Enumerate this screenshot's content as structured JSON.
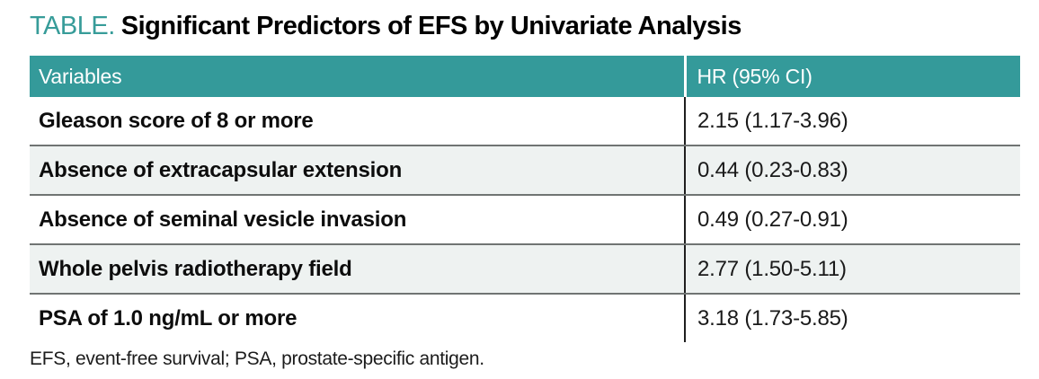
{
  "title": {
    "label": "TABLE.",
    "text": "Significant Predictors of EFS by Univariate Analysis"
  },
  "table": {
    "columns": [
      "Variables",
      "HR (95% CI)"
    ],
    "rows": [
      {
        "variable": "Gleason score of 8 or more",
        "hr": "2.15 (1.17-3.96)"
      },
      {
        "variable": "Absence of extracapsular extension",
        "hr": "0.44 (0.23-0.83)"
      },
      {
        "variable": "Absence of seminal vesicle invasion",
        "hr": "0.49 (0.27-0.91)"
      },
      {
        "variable": "Whole pelvis radiotherapy field",
        "hr": "2.77 (1.50-5.11)"
      },
      {
        "variable": "PSA of 1.0 ng/mL or more",
        "hr": "3.18 (1.73-5.85)"
      }
    ]
  },
  "footnote": "EFS, event-free survival; PSA, prostate-specific antigen.",
  "colors": {
    "accent_teal": "#349a9a",
    "header_text": "#ffffff",
    "row_alt_background": "#eef2f1",
    "row_separator": "#707473",
    "column_divider": "#1f1f1f",
    "title_accent": "#379c99"
  }
}
